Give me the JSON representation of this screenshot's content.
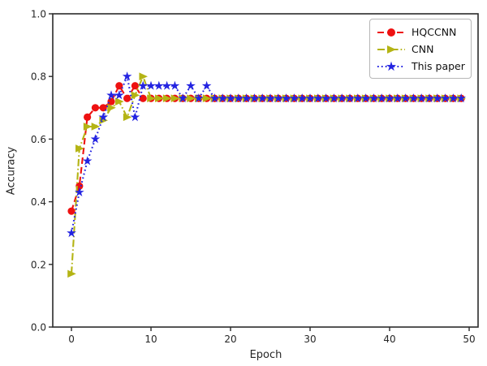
{
  "figure": {
    "background": "#ffffff",
    "spine_color": "#2b2b2b",
    "tick_label_color": "#262626"
  },
  "chart_data": {
    "type": "line",
    "title": "",
    "xlabel": "Epoch",
    "ylabel": "Accuracy",
    "xlim": [
      -2.35,
      51.12
    ],
    "ylim": [
      0,
      1
    ],
    "grid": false,
    "legend_position": "upper right",
    "xticks": {
      "values": [
        0,
        10,
        20,
        30,
        40,
        50
      ],
      "labels": [
        "0",
        "10",
        "20",
        "30",
        "40",
        "50"
      ]
    },
    "yticks": {
      "values": [
        0.0,
        0.2,
        0.4,
        0.6,
        0.8,
        1.0
      ],
      "labels": [
        "0.0",
        "0.2",
        "0.4",
        "0.6",
        "0.8",
        "1.0"
      ]
    },
    "x": [
      0,
      1,
      2,
      3,
      4,
      5,
      6,
      7,
      8,
      9,
      10,
      11,
      12,
      13,
      14,
      15,
      16,
      17,
      18,
      19,
      20,
      21,
      22,
      23,
      24,
      25,
      26,
      27,
      28,
      29,
      30,
      31,
      32,
      33,
      34,
      35,
      36,
      37,
      38,
      39,
      40,
      41,
      42,
      43,
      44,
      45,
      46,
      47,
      48,
      49
    ],
    "series": [
      {
        "name": "HQCCNN",
        "color": "#ee1111",
        "linestyle": "dashed",
        "marker": "circle",
        "values": [
          0.37,
          0.45,
          0.67,
          0.7,
          0.7,
          0.72,
          0.77,
          0.73,
          0.77,
          0.73,
          0.73,
          0.73,
          0.73,
          0.73,
          0.73,
          0.73,
          0.73,
          0.73,
          0.73,
          0.73,
          0.73,
          0.73,
          0.73,
          0.73,
          0.73,
          0.73,
          0.73,
          0.73,
          0.73,
          0.73,
          0.73,
          0.73,
          0.73,
          0.73,
          0.73,
          0.73,
          0.73,
          0.73,
          0.73,
          0.73,
          0.73,
          0.73,
          0.73,
          0.73,
          0.73,
          0.73,
          0.73,
          0.73,
          0.73,
          0.73
        ]
      },
      {
        "name": "CNN",
        "color": "#b4b414",
        "linestyle": "dashdot",
        "marker": "triangle-right",
        "values": [
          0.17,
          0.57,
          0.64,
          0.64,
          0.66,
          0.7,
          0.72,
          0.67,
          0.74,
          0.8,
          0.73,
          0.73,
          0.73,
          0.73,
          0.73,
          0.73,
          0.73,
          0.73,
          0.73,
          0.73,
          0.73,
          0.73,
          0.73,
          0.73,
          0.73,
          0.73,
          0.73,
          0.73,
          0.73,
          0.73,
          0.73,
          0.73,
          0.73,
          0.73,
          0.73,
          0.73,
          0.73,
          0.73,
          0.73,
          0.73,
          0.73,
          0.73,
          0.73,
          0.73,
          0.73,
          0.73,
          0.73,
          0.73,
          0.73,
          0.73
        ]
      },
      {
        "name": "This paper",
        "color": "#2323e1",
        "linestyle": "dotted",
        "marker": "star",
        "values": [
          0.3,
          0.43,
          0.53,
          0.6,
          0.67,
          0.74,
          0.74,
          0.8,
          0.67,
          0.77,
          0.77,
          0.77,
          0.77,
          0.77,
          0.73,
          0.77,
          0.73,
          0.77,
          0.73,
          0.73,
          0.73,
          0.73,
          0.73,
          0.73,
          0.73,
          0.73,
          0.73,
          0.73,
          0.73,
          0.73,
          0.73,
          0.73,
          0.73,
          0.73,
          0.73,
          0.73,
          0.73,
          0.73,
          0.73,
          0.73,
          0.73,
          0.73,
          0.73,
          0.73,
          0.73,
          0.73,
          0.73,
          0.73,
          0.73,
          0.73
        ]
      }
    ]
  }
}
